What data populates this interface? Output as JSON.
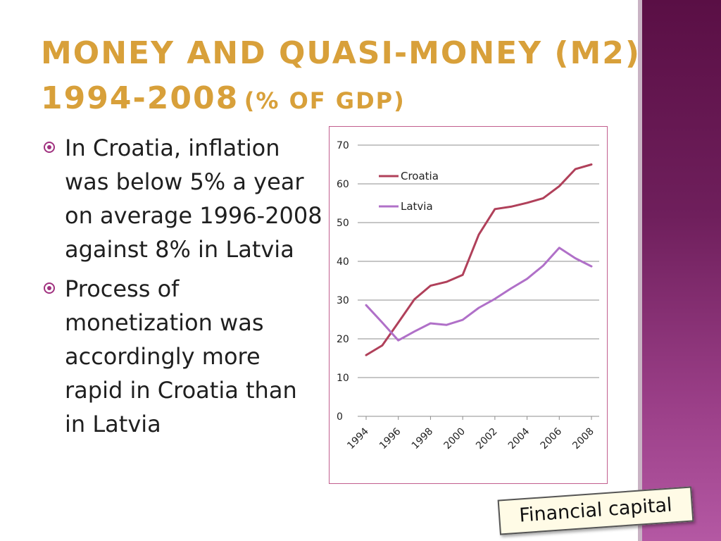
{
  "title": {
    "line1": "Money and quasi-money (M2)",
    "line2": "1994-2008",
    "line2_small": "(% of GDP)",
    "color": "#d8a03a"
  },
  "bullets": [
    "In Croatia, inflation was below 5% a year on average 1996-2008 against 8% in Latvia",
    "Process of monetization was accordingly more rapid in Croatia than in Latvia"
  ],
  "stamp_text": "Financial capital",
  "chart_data": {
    "type": "line",
    "x": [
      1994,
      1995,
      1996,
      1997,
      1998,
      1999,
      2000,
      2001,
      2002,
      2003,
      2004,
      2005,
      2006,
      2007,
      2008
    ],
    "x_tick_labels": [
      "1994",
      "1996",
      "1998",
      "2000",
      "2002",
      "2004",
      "2006",
      "2008"
    ],
    "ylim": [
      0,
      70
    ],
    "y_ticks": [
      0,
      10,
      20,
      30,
      40,
      50,
      60,
      70
    ],
    "grid": true,
    "legend_position": "top-left inside plot",
    "series": [
      {
        "name": "Croatia",
        "color": "#b0405a",
        "values": [
          15.8,
          18.3,
          24.2,
          30.2,
          33.7,
          34.7,
          36.5,
          46.9,
          53.5,
          54.1,
          55.1,
          56.3,
          59.4,
          63.8,
          65.0
        ]
      },
      {
        "name": "Latvia",
        "color": "#b070c8",
        "values": [
          28.7,
          24.2,
          19.6,
          21.9,
          24.0,
          23.6,
          24.9,
          28.0,
          30.3,
          33.0,
          35.5,
          38.9,
          43.5,
          40.8,
          38.7
        ]
      }
    ]
  }
}
